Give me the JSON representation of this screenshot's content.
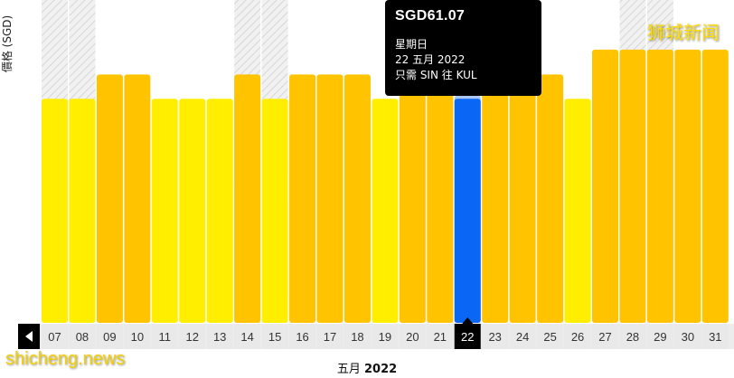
{
  "chart_data": {
    "type": "bar",
    "ylabel": "價格 (SGD)",
    "xlabel_month": "五月",
    "xlabel_year": "2022",
    "categories": [
      "07",
      "08",
      "09",
      "10",
      "11",
      "12",
      "13",
      "14",
      "15",
      "16",
      "17",
      "18",
      "19",
      "20",
      "21",
      "22",
      "23",
      "24",
      "25",
      "26",
      "27",
      "28",
      "29",
      "30",
      "31"
    ],
    "values": [
      61.07,
      61.07,
      64.0,
      64.0,
      61.07,
      61.07,
      61.07,
      64.0,
      61.07,
      64.0,
      64.0,
      64.0,
      61.07,
      67.0,
      64.0,
      61.07,
      64.0,
      64.0,
      64.0,
      61.07,
      67.0,
      67.0,
      67.0,
      67.0,
      67.0
    ],
    "ylim": [
      34,
      73
    ],
    "selected_category": "22",
    "weekend_categories": [
      "07",
      "08",
      "14",
      "15",
      "21",
      "22",
      "28",
      "29"
    ],
    "colors": {
      "bar_light": "#ffee00",
      "bar_dark": "#ffc300",
      "bar_selected": "#0a66f5",
      "selected_column": "#a9c7f2",
      "weekend_stripe": "#e2e2e2",
      "axis_bar": "#ececec"
    },
    "bar_color_class": [
      "light",
      "light",
      "dark",
      "dark",
      "light",
      "light",
      "light",
      "dark",
      "light",
      "dark",
      "dark",
      "dark",
      "light",
      "dark",
      "dark",
      "selected",
      "dark",
      "dark",
      "dark",
      "light",
      "dark",
      "dark",
      "dark",
      "dark",
      "dark"
    ]
  },
  "tooltip": {
    "price": "SGD61.07",
    "weekday": "星期日",
    "date": "22 五月 2022",
    "route": "只需 SIN 往 KUL"
  },
  "nav": {
    "prev_icon": "chevron-left-icon"
  },
  "watermarks": {
    "top_right": "狮城新闻",
    "bottom_left": "shicheng.news"
  }
}
